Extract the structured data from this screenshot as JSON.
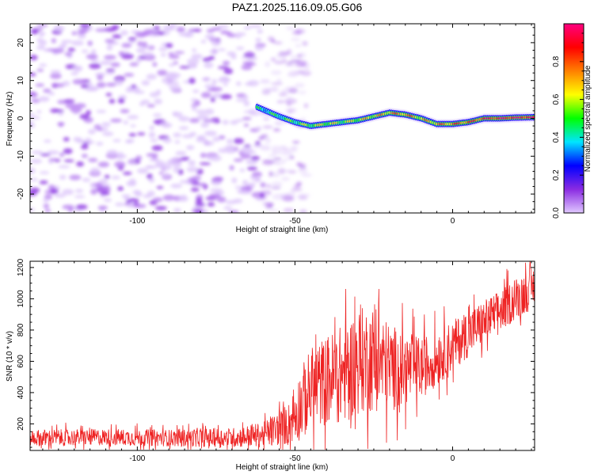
{
  "title": "PAZ1.2025.116.09.05.G06",
  "chart_data": [
    {
      "type": "heatmap",
      "xlabel": "Height of straight line (km)",
      "ylabel": "Frequency (Hz)",
      "xlim": [
        -134,
        26
      ],
      "ylim": [
        -25,
        25
      ],
      "x_ticks": [
        -100,
        -50,
        0
      ],
      "y_ticks": [
        -20,
        -10,
        0,
        10,
        20
      ],
      "colorbar": {
        "label": "Normalized spectral amplitude",
        "range": [
          0,
          1
        ],
        "ticks": [
          0.0,
          0.2,
          0.4,
          0.6,
          0.8
        ],
        "colormap": [
          "#e0c8ff",
          "#8a2be2",
          "#0000ff",
          "#00e5ff",
          "#00ff00",
          "#ffff00",
          "#ff8000",
          "#ff0000",
          "#ff0080"
        ]
      },
      "noise_region_x": [
        -134,
        -52
      ],
      "signal_track": {
        "x": [
          -62,
          -55,
          -50,
          -45,
          -40,
          -35,
          -30,
          -25,
          -20,
          -15,
          -10,
          -5,
          0,
          5,
          10,
          15,
          20,
          26
        ],
        "freq": [
          3,
          0.5,
          -1,
          -2,
          -1.5,
          -1,
          -0.5,
          0.5,
          1.5,
          1,
          0,
          -1.5,
          -1.5,
          -1,
          0,
          0,
          0.2,
          0.3
        ],
        "amp": [
          0.4,
          0.45,
          0.5,
          0.55,
          0.6,
          0.55,
          0.6,
          0.65,
          0.7,
          0.75,
          0.65,
          0.7,
          0.75,
          0.8,
          0.85,
          0.9,
          0.92,
          0.9
        ]
      }
    },
    {
      "type": "line",
      "xlabel": "Height of straight line (km)",
      "ylabel": "SNR (10 * v/v)",
      "xlim": [
        -134,
        26
      ],
      "ylim": [
        30,
        1240
      ],
      "x_ticks": [
        -100,
        -50,
        0
      ],
      "y_ticks": [
        200,
        400,
        600,
        800,
        1000,
        1200
      ],
      "series": [
        {
          "color": "#ee2222",
          "trend_x": [
            -134,
            -110,
            -90,
            -70,
            -60,
            -52,
            -48,
            -45,
            -40,
            -35,
            -30,
            -25,
            -20,
            -15,
            -10,
            -5,
            0,
            5,
            10,
            15,
            20,
            26
          ],
          "trend_y": [
            110,
            115,
            110,
            112,
            130,
            200,
            330,
            420,
            480,
            520,
            600,
            620,
            560,
            550,
            560,
            620,
            700,
            780,
            850,
            920,
            1000,
            1080
          ],
          "noise_amplitude": [
            60,
            60,
            60,
            70,
            90,
            150,
            260,
            300,
            320,
            350,
            380,
            380,
            320,
            260,
            220,
            200,
            180,
            170,
            160,
            150,
            150,
            150
          ]
        }
      ]
    }
  ]
}
